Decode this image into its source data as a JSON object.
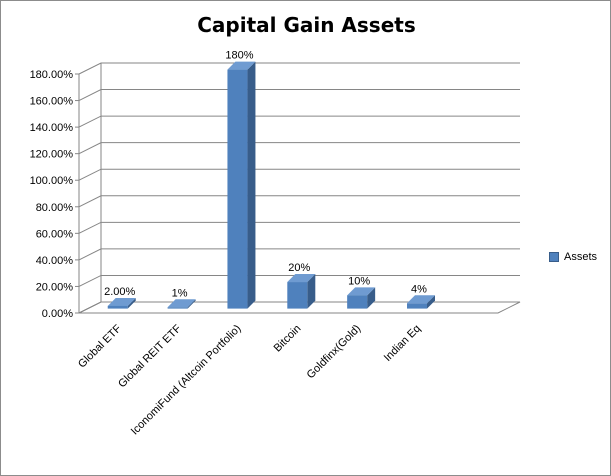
{
  "chart_data": {
    "type": "bar",
    "title": "Capital Gain Assets",
    "categories": [
      "Global ETF",
      "Global REIT ETF",
      "IconomiFund (Altcoin Portfolio)",
      "Bitcoin",
      "Goldfinx(Gold)",
      "Indian Eq"
    ],
    "series": [
      {
        "name": "Assets",
        "values": [
          2,
          1,
          180,
          20,
          10,
          4
        ],
        "labels": [
          "2.00%",
          "1%",
          "180%",
          "20%",
          "10%",
          "4%"
        ],
        "color": "#4f81bd"
      }
    ],
    "ylim": [
      0,
      180
    ],
    "yticks": [
      "0.00%",
      "20.00%",
      "40.00%",
      "60.00%",
      "80.00%",
      "100.00%",
      "120.00%",
      "140.00%",
      "160.00%",
      "180.00%"
    ],
    "grid": true,
    "legend": "right"
  }
}
